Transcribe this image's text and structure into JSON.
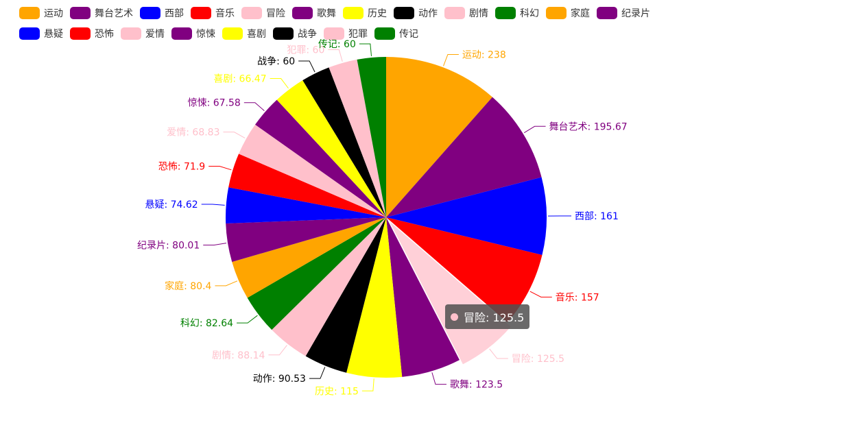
{
  "chart_data": {
    "type": "pie",
    "categories": [
      "运动",
      "舞台艺术",
      "西部",
      "音乐",
      "冒险",
      "歌舞",
      "历史",
      "动作",
      "剧情",
      "科幻",
      "家庭",
      "纪录片",
      "悬疑",
      "恐怖",
      "爱情",
      "惊悚",
      "喜剧",
      "战争",
      "犯罪",
      "传记"
    ],
    "values": [
      238,
      195.67,
      161,
      157,
      125.5,
      123.5,
      115,
      90.53,
      88.14,
      82.64,
      80.4,
      80.01,
      74.62,
      71.9,
      68.83,
      67.58,
      66.47,
      60,
      60,
      60
    ],
    "colors": [
      "#FFA500",
      "#800080",
      "#0000FF",
      "#FF0000",
      "#FFC0CB",
      "#800080",
      "#FFFF00",
      "#000000",
      "#FFC0CB",
      "#008000",
      "#FFA500",
      "#800080",
      "#0000FF",
      "#FF0000",
      "#FFC0CB",
      "#800080",
      "#FFFF00",
      "#000000",
      "#FFC0CB",
      "#008000"
    ],
    "label_colors": [
      "#FFA500",
      "#800080",
      "#0000FF",
      "#FF0000",
      "#FFC0CB",
      "#800080",
      "#FFFF00",
      "#000000",
      "#FFC0CB",
      "#008000",
      "#FFA500",
      "#800080",
      "#0000FF",
      "#FF0000",
      "#FFC0CB",
      "#800080",
      "#FFFF00",
      "#000000",
      "#FFC0CB",
      "#008000"
    ],
    "labels": [
      "运动: 238",
      "舞台艺术: 195.67",
      "西部: 161",
      "音乐: 157",
      "冒险: 125.5",
      "歌舞: 123.5",
      "历史: 115",
      "动作: 90.53",
      "剧情: 88.14",
      "科幻: 82.64",
      "家庭: 80.4",
      "纪录片: 80.01",
      "悬疑: 74.62",
      "恐怖: 71.9",
      "爱情: 68.83",
      "惊悚: 67.58",
      "喜剧: 66.47",
      "战争: 60",
      "犯罪: 60",
      "传记: 60"
    ],
    "legend_position": "top-left",
    "highlighted_index": 4
  },
  "tooltip": {
    "text": "冒险: 125.5",
    "color": "#FFC0CB"
  }
}
